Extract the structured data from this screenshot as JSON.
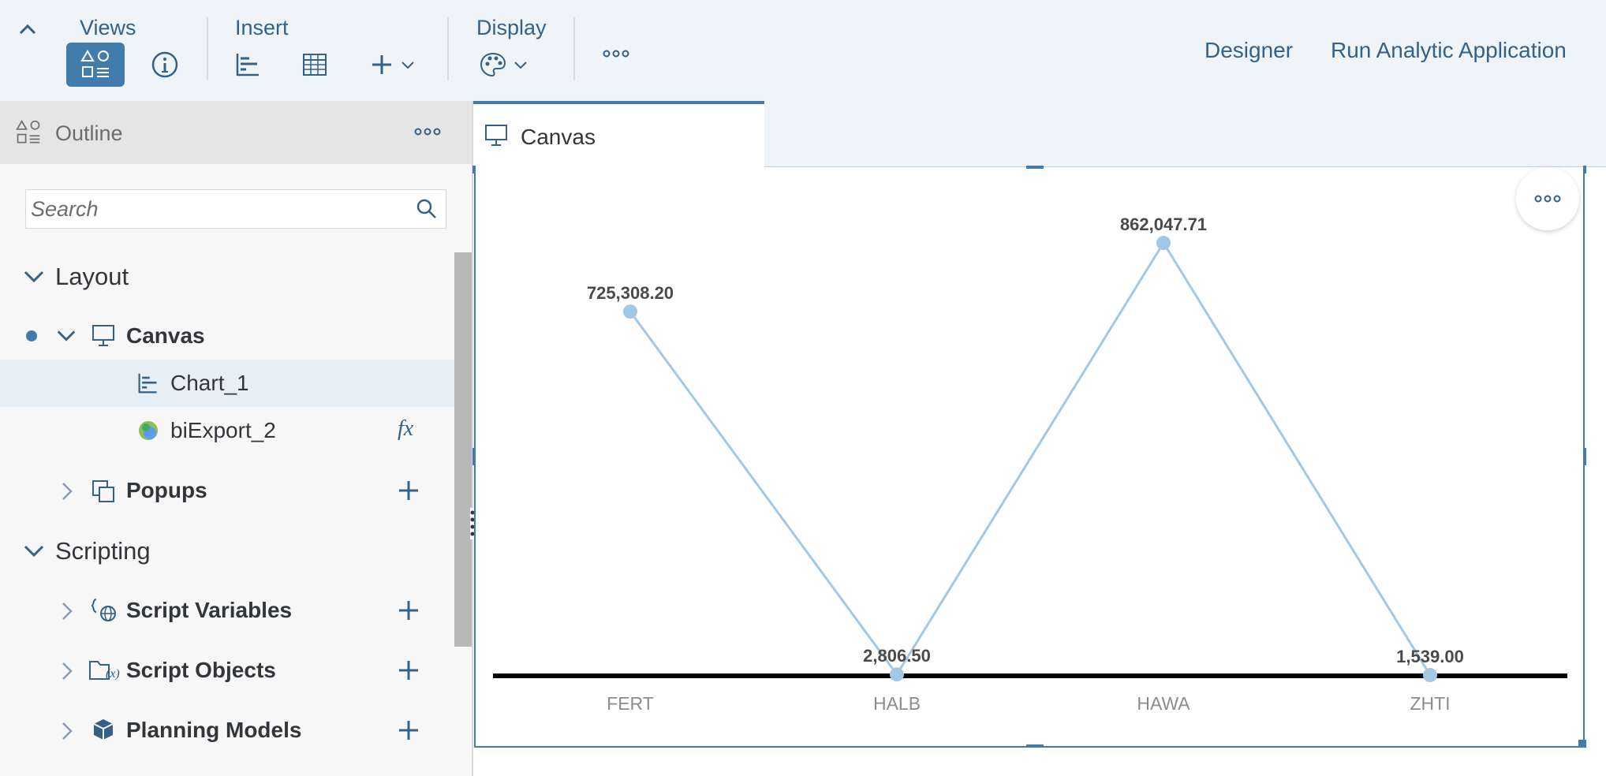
{
  "toolbar": {
    "groups": {
      "views": "Views",
      "insert": "Insert",
      "display": "Display"
    },
    "designer": "Designer",
    "run": "Run Analytic Application"
  },
  "outline": {
    "title": "Outline",
    "search_placeholder": "Search",
    "layout": "Layout",
    "canvas": "Canvas",
    "chart": "Chart_1",
    "export": "biExport_2",
    "popups": "Popups",
    "scripting": "Scripting",
    "script_variables": "Script Variables",
    "script_objects": "Script Objects",
    "planning_models": "Planning Models",
    "fx": "fx"
  },
  "tab": {
    "label": "Canvas"
  },
  "colors": {
    "accent": "#427cac",
    "line": "#a3c8e6",
    "toolbar_bg": "#eff4f9"
  },
  "chart_data": {
    "type": "line",
    "categories": [
      "FERT",
      "HALB",
      "HAWA",
      "ZHTI"
    ],
    "values": [
      725308.2,
      2806.5,
      862047.71,
      1539.0
    ],
    "labels": [
      "725,308.20",
      "2,806.50",
      "862,047.71",
      "1,539.00"
    ],
    "ylim": [
      0,
      950000
    ],
    "grid": false,
    "legend": "none"
  }
}
